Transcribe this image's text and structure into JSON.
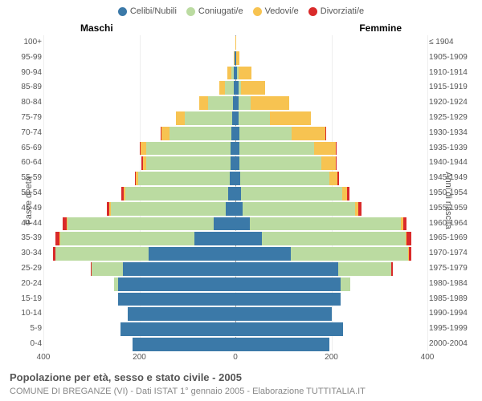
{
  "chart": {
    "type": "population-pyramid",
    "title": "Popolazione per età, sesso e stato civile - 2005",
    "subtitle": "COMUNE DI BREGANZE (VI) - Dati ISTAT 1° gennaio 2005 - Elaborazione TUTTITALIA.IT",
    "left_col_label": "Maschi",
    "right_col_label": "Femmine",
    "left_axis_title": "Fasce di età",
    "right_axis_title": "Anni di nascita",
    "half_max": 400,
    "xticks": [
      -400,
      -200,
      0,
      200,
      400
    ],
    "xtick_labels": [
      "400",
      "200",
      "0",
      "200",
      "400"
    ],
    "background_color": "#ffffff",
    "grid_color": "#eeeeee",
    "centerline_color": "#999999",
    "label_color": "#555555",
    "title_fontsize": 13,
    "subtitle_fontsize": 11,
    "tick_fontsize": 10,
    "legend": [
      {
        "label": "Celibi/Nubili",
        "color": "#3b79a8"
      },
      {
        "label": "Coniugati/e",
        "color": "#bbdba1"
      },
      {
        "label": "Vedovi/e",
        "color": "#f7c351"
      },
      {
        "label": "Divorziati/e",
        "color": "#d92a2a"
      }
    ],
    "age_labels": [
      "100+",
      "95-99",
      "90-94",
      "85-89",
      "80-84",
      "75-79",
      "70-74",
      "65-69",
      "60-64",
      "55-59",
      "50-54",
      "45-49",
      "40-44",
      "35-39",
      "30-34",
      "25-29",
      "20-24",
      "15-19",
      "10-14",
      "5-9",
      "0-4"
    ],
    "birth_labels": [
      "≤ 1904",
      "1905-1909",
      "1910-1914",
      "1915-1919",
      "1920-1924",
      "1925-1929",
      "1930-1934",
      "1935-1939",
      "1940-1944",
      "1945-1949",
      "1950-1954",
      "1955-1959",
      "1960-1964",
      "1965-1969",
      "1970-1974",
      "1975-1979",
      "1980-1984",
      "1985-1989",
      "1990-1994",
      "1995-1999",
      "2000-2004"
    ],
    "male": [
      {
        "cel": 0,
        "con": 0,
        "ved": 0,
        "div": 0
      },
      {
        "cel": 1,
        "con": 0,
        "ved": 2,
        "div": 0
      },
      {
        "cel": 3,
        "con": 5,
        "ved": 8,
        "div": 0
      },
      {
        "cel": 4,
        "con": 18,
        "ved": 12,
        "div": 0
      },
      {
        "cel": 5,
        "con": 52,
        "ved": 18,
        "div": 0
      },
      {
        "cel": 6,
        "con": 100,
        "ved": 18,
        "div": 0
      },
      {
        "cel": 8,
        "con": 130,
        "ved": 16,
        "div": 2
      },
      {
        "cel": 10,
        "con": 175,
        "ved": 12,
        "div": 3
      },
      {
        "cel": 10,
        "con": 175,
        "ved": 8,
        "div": 3
      },
      {
        "cel": 12,
        "con": 190,
        "ved": 5,
        "div": 3
      },
      {
        "cel": 15,
        "con": 215,
        "ved": 3,
        "div": 5
      },
      {
        "cel": 20,
        "con": 240,
        "ved": 2,
        "div": 6
      },
      {
        "cel": 45,
        "con": 305,
        "ved": 2,
        "div": 8
      },
      {
        "cel": 85,
        "con": 280,
        "ved": 1,
        "div": 9
      },
      {
        "cel": 180,
        "con": 195,
        "ved": 0,
        "div": 5
      },
      {
        "cel": 235,
        "con": 65,
        "ved": 0,
        "div": 2
      },
      {
        "cel": 245,
        "con": 8,
        "ved": 0,
        "div": 0
      },
      {
        "cel": 245,
        "con": 0,
        "ved": 0,
        "div": 0
      },
      {
        "cel": 225,
        "con": 0,
        "ved": 0,
        "div": 0
      },
      {
        "cel": 240,
        "con": 0,
        "ved": 0,
        "div": 0
      },
      {
        "cel": 215,
        "con": 0,
        "ved": 0,
        "div": 0
      }
    ],
    "female": [
      {
        "cel": 0,
        "con": 0,
        "ved": 2,
        "div": 0
      },
      {
        "cel": 1,
        "con": 0,
        "ved": 8,
        "div": 0
      },
      {
        "cel": 4,
        "con": 2,
        "ved": 28,
        "div": 0
      },
      {
        "cel": 6,
        "con": 6,
        "ved": 50,
        "div": 0
      },
      {
        "cel": 7,
        "con": 25,
        "ved": 80,
        "div": 0
      },
      {
        "cel": 7,
        "con": 65,
        "ved": 85,
        "div": 0
      },
      {
        "cel": 8,
        "con": 110,
        "ved": 70,
        "div": 1
      },
      {
        "cel": 9,
        "con": 155,
        "ved": 45,
        "div": 2
      },
      {
        "cel": 9,
        "con": 170,
        "ved": 30,
        "div": 2
      },
      {
        "cel": 10,
        "con": 185,
        "ved": 18,
        "div": 3
      },
      {
        "cel": 12,
        "con": 210,
        "ved": 10,
        "div": 5
      },
      {
        "cel": 15,
        "con": 235,
        "ved": 6,
        "div": 6
      },
      {
        "cel": 30,
        "con": 315,
        "ved": 4,
        "div": 8
      },
      {
        "cel": 55,
        "con": 300,
        "ved": 2,
        "div": 9
      },
      {
        "cel": 115,
        "con": 245,
        "ved": 1,
        "div": 6
      },
      {
        "cel": 215,
        "con": 110,
        "ved": 0,
        "div": 3
      },
      {
        "cel": 220,
        "con": 20,
        "ved": 0,
        "div": 0
      },
      {
        "cel": 220,
        "con": 0,
        "ved": 0,
        "div": 0
      },
      {
        "cel": 200,
        "con": 0,
        "ved": 0,
        "div": 0
      },
      {
        "cel": 225,
        "con": 0,
        "ved": 0,
        "div": 0
      },
      {
        "cel": 195,
        "con": 0,
        "ved": 0,
        "div": 0
      }
    ]
  }
}
